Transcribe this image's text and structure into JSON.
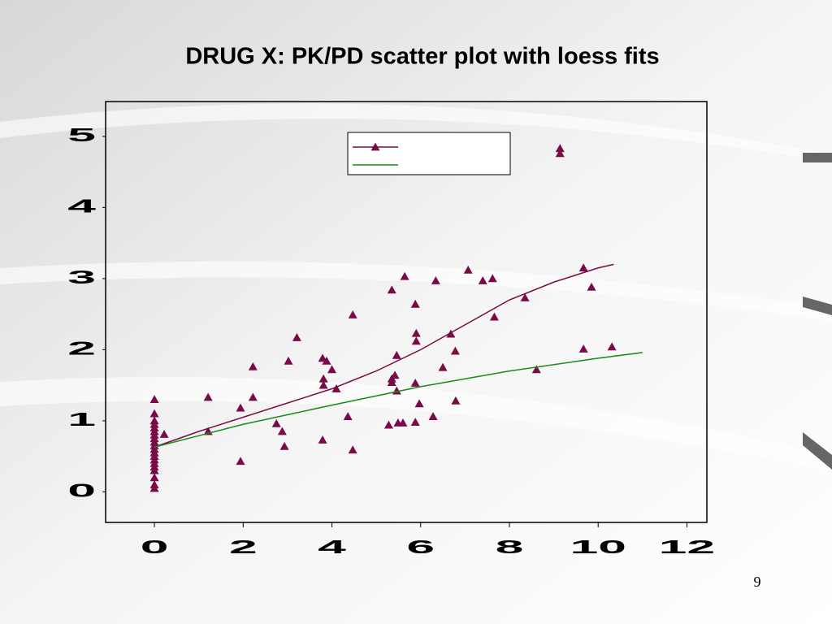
{
  "page_number": "9",
  "chart_data": {
    "type": "scatter",
    "title": "DRUG X: PK/PD scatter plot with loess fits",
    "xlim": [
      -1.1,
      12.45
    ],
    "ylim": [
      -0.43,
      5.49
    ],
    "xticks": [
      0,
      2,
      4,
      6,
      8,
      10,
      12
    ],
    "yticks": [
      0,
      1,
      2,
      3,
      4,
      5
    ],
    "legend": "top-center",
    "series": [
      {
        "mode": "markers",
        "color": "#7a0a45",
        "x": [
          0,
          0,
          0,
          0,
          0,
          0,
          0,
          0,
          0,
          0,
          0,
          0,
          0,
          0,
          0,
          0,
          0,
          0,
          0,
          0,
          0.22,
          1.21,
          1.21,
          1.94,
          1.94,
          2.22,
          2.22,
          2.75,
          2.88,
          2.93,
          3.02,
          3.21,
          3.79,
          3.88,
          3.81,
          3.81,
          4.0,
          4.1,
          3.79,
          4.36,
          4.47,
          4.47,
          5.35,
          5.64,
          5.88,
          6.34,
          5.46,
          5.35,
          5.35,
          5.42,
          5.46,
          5.28,
          5.49,
          5.6,
          5.88,
          5.9,
          5.9,
          5.88,
          5.97,
          6.28,
          6.5,
          6.68,
          6.78,
          6.79,
          7.07,
          7.4,
          7.62,
          7.66,
          8.35,
          8.61,
          9.14,
          9.14,
          9.67,
          9.67,
          9.85,
          10.31
        ],
        "y": [
          1.3,
          1.1,
          1.0,
          0.95,
          0.9,
          0.85,
          0.8,
          0.75,
          0.7,
          0.65,
          0.6,
          0.55,
          0.5,
          0.45,
          0.4,
          0.35,
          0.3,
          0.2,
          0.1,
          0.05,
          0.81,
          1.33,
          0.85,
          1.18,
          0.43,
          1.76,
          1.33,
          0.96,
          0.85,
          0.64,
          1.84,
          2.17,
          1.88,
          1.84,
          1.59,
          1.5,
          1.72,
          1.45,
          0.73,
          1.06,
          2.49,
          0.59,
          2.84,
          3.03,
          2.64,
          2.97,
          1.92,
          1.59,
          1.54,
          1.64,
          1.42,
          0.94,
          0.97,
          0.97,
          0.98,
          2.23,
          2.12,
          1.53,
          1.24,
          1.06,
          1.75,
          2.22,
          1.98,
          1.28,
          3.12,
          2.97,
          3.0,
          2.46,
          2.73,
          1.72,
          4.83,
          4.76,
          3.15,
          2.01,
          2.88,
          2.04
        ]
      },
      {
        "mode": "line",
        "color": "#7a0a45",
        "x": [
          0,
          1,
          2,
          3,
          4,
          5,
          6,
          7,
          8,
          9,
          10,
          10.35
        ],
        "y": [
          0.63,
          0.85,
          1.05,
          1.25,
          1.45,
          1.7,
          2.0,
          2.35,
          2.7,
          2.95,
          3.15,
          3.2
        ]
      },
      {
        "mode": "line",
        "color": "#1a8a1a",
        "x": [
          0,
          2,
          4,
          6,
          8,
          10,
          11
        ],
        "y": [
          0.63,
          0.95,
          1.22,
          1.48,
          1.7,
          1.88,
          1.96
        ]
      }
    ]
  }
}
